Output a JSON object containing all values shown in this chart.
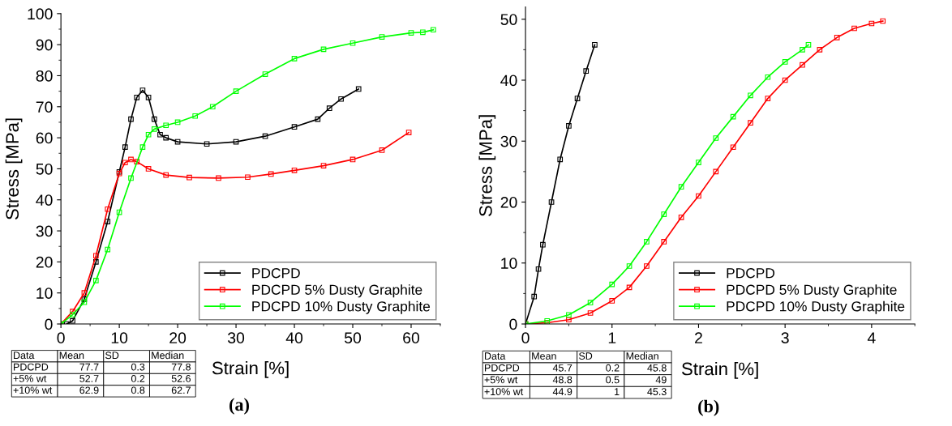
{
  "chart_data": [
    {
      "type": "line",
      "xlabel": "Strain [%]",
      "ylabel": "Stress [MPa]",
      "xlim": [
        0,
        65
      ],
      "xticks": [
        0,
        10,
        20,
        30,
        40,
        50,
        60
      ],
      "ylim": [
        0,
        100
      ],
      "yticks": [
        0,
        10,
        20,
        30,
        40,
        50,
        60,
        70,
        80,
        90,
        100
      ],
      "marker": "square",
      "grid": false,
      "legend": "bottom right",
      "series": [
        {
          "name": "PDCPD",
          "color": "#000000",
          "x": [
            1,
            2,
            4,
            6,
            8,
            10,
            11,
            12,
            13,
            14,
            15,
            16,
            17,
            18,
            20,
            25,
            30,
            35,
            40,
            44,
            46,
            48,
            51
          ],
          "values": [
            0,
            1,
            8,
            20,
            33,
            49,
            57,
            66,
            73,
            75.3,
            73,
            66,
            61,
            60,
            58.7,
            58,
            58.7,
            60.5,
            63.5,
            66,
            69.5,
            72.5,
            75.7
          ]
        },
        {
          "name": "PDCPD 5% Dusty Graphite",
          "color": "#ff0000",
          "x": [
            0,
            2,
            4,
            6,
            8,
            10,
            11,
            12,
            13,
            15,
            18,
            22,
            27,
            32,
            36,
            40,
            45,
            50,
            55,
            59.6
          ],
          "values": [
            0,
            4,
            10,
            22,
            37,
            48.5,
            52,
            53,
            52.3,
            50,
            48,
            47.2,
            47,
            47.3,
            48.3,
            49.5,
            51,
            53,
            56,
            61.7
          ]
        },
        {
          "name": "PDCPD 10% Dusty Graphite",
          "color": "#00ff00",
          "x": [
            0,
            2,
            4,
            6,
            8,
            10,
            12,
            14,
            15,
            16,
            18,
            20,
            23,
            26,
            30,
            35,
            40,
            45,
            50,
            55,
            60,
            62,
            63.8
          ],
          "values": [
            0,
            3,
            7,
            14,
            24,
            36,
            47,
            57,
            61,
            62.8,
            64,
            65,
            67,
            70,
            75,
            80.5,
            85.5,
            88.5,
            90.5,
            92.5,
            93.8,
            94,
            94.8
          ]
        }
      ],
      "annotations": [
        "Data",
        "Mean",
        "SD",
        "Median",
        "PDCPD",
        "77.7",
        "0.3",
        "77.8",
        "+5% wt",
        "52.7",
        "0.2",
        "52.6",
        "+10% wt",
        "62.9",
        "0.8",
        "62.7",
        "(a)"
      ]
    },
    {
      "type": "line",
      "xlabel": "Strain [%]",
      "ylabel": "Stress [MPa]",
      "xlim": [
        0,
        4.5
      ],
      "xticks": [
        0,
        1,
        2,
        3,
        4
      ],
      "ylim": [
        0,
        52
      ],
      "yticks": [
        0,
        10,
        20,
        30,
        40,
        50
      ],
      "marker": "square",
      "grid": false,
      "legend": "bottom right",
      "series": [
        {
          "name": "PDCPD",
          "color": "#000000",
          "x": [
            0,
            0.1,
            0.15,
            0.2,
            0.3,
            0.4,
            0.5,
            0.6,
            0.7,
            0.8
          ],
          "values": [
            0,
            4.5,
            9,
            13,
            20,
            27,
            32.5,
            37,
            41.5,
            45.8
          ]
        },
        {
          "name": "PDCPD 5% Dusty Graphite",
          "color": "#ff0000",
          "x": [
            0,
            0.25,
            0.5,
            0.75,
            1.0,
            1.2,
            1.4,
            1.6,
            1.8,
            2.0,
            2.2,
            2.4,
            2.6,
            2.8,
            3.0,
            3.2,
            3.4,
            3.6,
            3.8,
            4.0,
            4.13
          ],
          "values": [
            0,
            0.2,
            0.7,
            1.8,
            3.8,
            6,
            9.5,
            13.5,
            17.5,
            21,
            25,
            29,
            33,
            37,
            40,
            42.5,
            45,
            47,
            48.5,
            49.3,
            49.7
          ]
        },
        {
          "name": "PDCPD 10% Dusty Graphite",
          "color": "#00ff00",
          "x": [
            0,
            0.25,
            0.5,
            0.75,
            1.0,
            1.2,
            1.4,
            1.6,
            1.8,
            2.0,
            2.2,
            2.4,
            2.6,
            2.8,
            3.0,
            3.2,
            3.27
          ],
          "values": [
            0,
            0.5,
            1.5,
            3.5,
            6.5,
            9.5,
            13.5,
            18,
            22.5,
            26.5,
            30.5,
            34,
            37.5,
            40.5,
            43,
            45,
            45.8
          ]
        }
      ],
      "annotations": [
        "Data",
        "Mean",
        "SD",
        "Median",
        "PDCPD",
        "45.7",
        "0.2",
        "45.8",
        "+5% wt",
        "48.8",
        "0.5",
        "49",
        "+10% wt",
        "44.9",
        "1",
        "45.3",
        "(b)"
      ]
    }
  ]
}
